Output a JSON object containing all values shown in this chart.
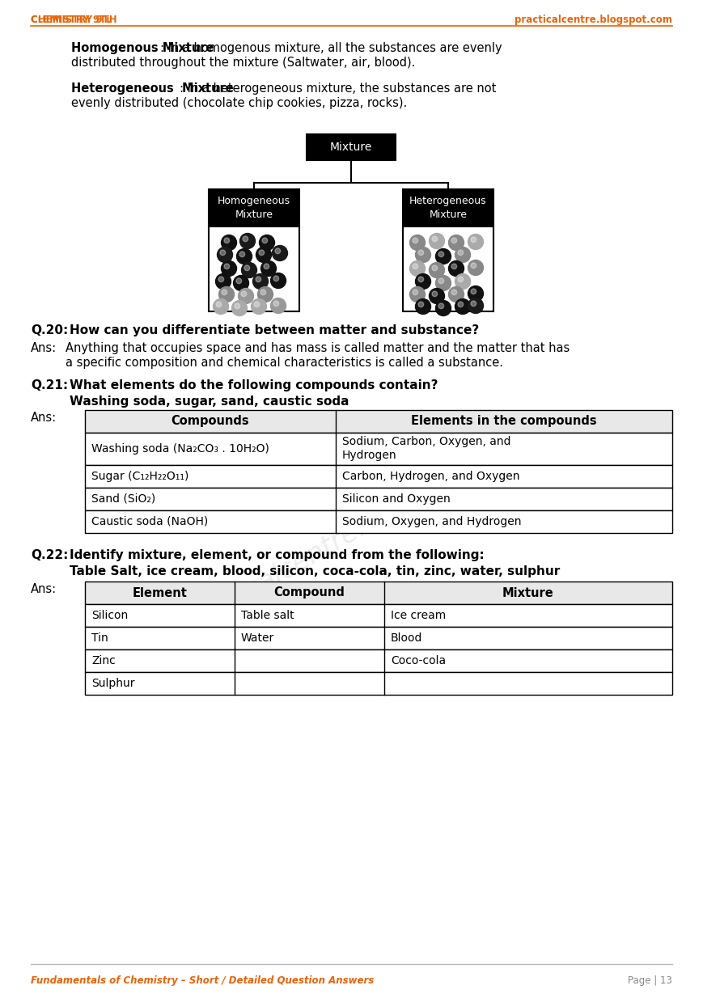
{
  "header_left": "Chemistry 9th",
  "header_right": "practicalcentre.blogspot.com",
  "header_color": "#E8640A",
  "footer_left": "Fundamentals of Chemistry – Short / Detailed Question Answers",
  "footer_right": "Page | 13",
  "footer_color": "#E8640A",
  "bg_color": "#ffffff",
  "para1_bold": "Homogenous Mixture",
  "para1_line1": ": In a homogenous mixture, all the substances are evenly",
  "para1_line2": "distributed throughout the mixture (Saltwater, air, blood).",
  "para2_bold": "Heterogeneous  Mixture",
  "para2_line1": ": In a heterogeneous mixture, the substances are not",
  "para2_line2": "evenly distributed (chocolate chip cookies, pizza, rocks).",
  "q20_label": "Q.20:",
  "q20_text": "How can you differentiate between matter and substance?",
  "q20_ans": "Anything that occupies space and has mass is called matter and the matter that has",
  "q20_ans2": "a specific composition and chemical characteristics is called a substance.",
  "q21_label": "Q.21:",
  "q21_text": "What elements do the following compounds contain?",
  "q21_sub": "Washing soda, sugar, sand, caustic soda",
  "q21_table_headers": [
    "Compounds",
    "Elements in the compounds"
  ],
  "q21_table_rows": [
    [
      "Washing soda (Na₂CO₃ . 10H₂O)",
      "Sodium, Carbon, Oxygen, and\nHydrogen"
    ],
    [
      "Sugar (C₁₂H₂₂O₁₁)",
      "Carbon, Hydrogen, and Oxygen"
    ],
    [
      "Sand (SiO₂)",
      "Silicon and Oxygen"
    ],
    [
      "Caustic soda (NaOH)",
      "Sodium, Oxygen, and Hydrogen"
    ]
  ],
  "q22_label": "Q.22:",
  "q22_text": "Identify mixture, element, or compound from the following:",
  "q22_sub": "Table Salt, ice cream, blood, silicon, coca-cola, tin, zinc, water, sulphur",
  "q22_table_headers": [
    "Element",
    "Compound",
    "Mixture"
  ],
  "q22_table_rows": [
    [
      "Silicon",
      "Table salt",
      "Ice cream"
    ],
    [
      "Tin",
      "Water",
      "Blood"
    ],
    [
      "Zinc",
      "",
      "Coco-cola"
    ],
    [
      "Sulphur",
      "",
      ""
    ]
  ],
  "left_balls": [
    [
      25,
      15,
      "#111111"
    ],
    [
      48,
      13,
      "#1a1a1a"
    ],
    [
      72,
      15,
      "#111111"
    ],
    [
      20,
      30,
      "#1a1a1a"
    ],
    [
      44,
      32,
      "#111111"
    ],
    [
      68,
      30,
      "#111111"
    ],
    [
      88,
      28,
      "#1a1a1a"
    ],
    [
      25,
      47,
      "#111111"
    ],
    [
      50,
      49,
      "#1a1a1a"
    ],
    [
      74,
      47,
      "#111111"
    ],
    [
      18,
      63,
      "#111111"
    ],
    [
      40,
      65,
      "#111111"
    ],
    [
      64,
      63,
      "#1a1a1a"
    ],
    [
      86,
      62,
      "#111111"
    ],
    [
      22,
      79,
      "#888888"
    ],
    [
      46,
      81,
      "#999999"
    ],
    [
      70,
      79,
      "#888888"
    ],
    [
      15,
      94,
      "#aaaaaa"
    ],
    [
      38,
      96,
      "#aaaaaa"
    ],
    [
      62,
      94,
      "#aaaaaa"
    ],
    [
      86,
      93,
      "#999999"
    ]
  ],
  "right_balls": [
    [
      18,
      15,
      "#888888"
    ],
    [
      42,
      13,
      "#aaaaaa"
    ],
    [
      66,
      15,
      "#888888"
    ],
    [
      90,
      14,
      "#aaaaaa"
    ],
    [
      25,
      30,
      "#888888"
    ],
    [
      50,
      32,
      "#111111"
    ],
    [
      74,
      30,
      "#888888"
    ],
    [
      18,
      47,
      "#aaaaaa"
    ],
    [
      42,
      49,
      "#888888"
    ],
    [
      66,
      47,
      "#111111"
    ],
    [
      90,
      46,
      "#888888"
    ],
    [
      25,
      63,
      "#111111"
    ],
    [
      50,
      65,
      "#888888"
    ],
    [
      74,
      63,
      "#aaaaaa"
    ],
    [
      18,
      79,
      "#888888"
    ],
    [
      42,
      81,
      "#111111"
    ],
    [
      66,
      79,
      "#888888"
    ],
    [
      90,
      78,
      "#111111"
    ],
    [
      25,
      94,
      "#111111"
    ],
    [
      50,
      96,
      "#111111"
    ],
    [
      74,
      94,
      "#111111"
    ],
    [
      90,
      93,
      "#1a1a1a"
    ]
  ]
}
